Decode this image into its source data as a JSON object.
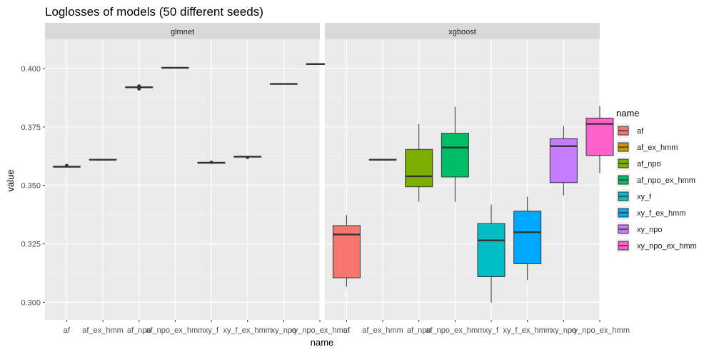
{
  "chart_data": {
    "type": "boxplot",
    "title": "Loglosses of models (50 different seeds)",
    "xlabel": "name",
    "ylabel": "value",
    "ylim": [
      0.2925,
      0.4125
    ],
    "yticks": [
      "0.300",
      "0.325",
      "0.350",
      "0.375",
      "0.400"
    ],
    "categories": [
      "af",
      "af_ex_hmm",
      "af_npo",
      "af_npo_ex_hmm",
      "xy_f",
      "xy_f_ex_hmm",
      "xy_npo",
      "xy_npo_ex_hmm"
    ],
    "legend": {
      "title": "name",
      "position": "right",
      "entries": [
        {
          "label": "af",
          "color": "#F8766D"
        },
        {
          "label": "af_ex_hmm",
          "color": "#CD9600"
        },
        {
          "label": "af_npo",
          "color": "#7CAE00"
        },
        {
          "label": "af_npo_ex_hmm",
          "color": "#00BE67"
        },
        {
          "label": "xy_f",
          "color": "#00BFC4"
        },
        {
          "label": "xy_f_ex_hmm",
          "color": "#00A9FF"
        },
        {
          "label": "xy_npo",
          "color": "#C77CFF"
        },
        {
          "label": "xy_npo_ex_hmm",
          "color": "#FF61CC"
        }
      ]
    },
    "panels": [
      {
        "facet": "glmnet",
        "boxes": [
          {
            "category": "af",
            "whisker_low": 0.3578,
            "q1": 0.3579,
            "median": 0.358,
            "q3": 0.3581,
            "whisker_high": 0.3582,
            "outliers": [
              0.3585
            ]
          },
          {
            "category": "af_ex_hmm",
            "whisker_low": 0.361,
            "q1": 0.361,
            "median": 0.361,
            "q3": 0.361,
            "whisker_high": 0.361,
            "outliers": []
          },
          {
            "category": "af_npo",
            "whisker_low": 0.3917,
            "q1": 0.3918,
            "median": 0.392,
            "q3": 0.3921,
            "whisker_high": 0.3923,
            "outliers": [
              0.3913,
              0.3925
            ]
          },
          {
            "category": "af_npo_ex_hmm",
            "whisker_low": 0.4003,
            "q1": 0.4003,
            "median": 0.4003,
            "q3": 0.4003,
            "whisker_high": 0.4003,
            "outliers": []
          },
          {
            "category": "xy_f",
            "whisker_low": 0.3594,
            "q1": 0.3595,
            "median": 0.3597,
            "q3": 0.3598,
            "whisker_high": 0.3599,
            "outliers": [
              0.3599
            ]
          },
          {
            "category": "xy_f_ex_hmm",
            "whisker_low": 0.362,
            "q1": 0.3621,
            "median": 0.3623,
            "q3": 0.3624,
            "whisker_high": 0.3625,
            "outliers": [
              0.362
            ]
          },
          {
            "category": "xy_npo",
            "whisker_low": 0.3932,
            "q1": 0.3933,
            "median": 0.3934,
            "q3": 0.3935,
            "whisker_high": 0.3936,
            "outliers": []
          },
          {
            "category": "xy_npo_ex_hmm",
            "whisker_low": 0.4016,
            "q1": 0.4017,
            "median": 0.4019,
            "q3": 0.402,
            "whisker_high": 0.4021,
            "outliers": []
          }
        ]
      },
      {
        "facet": "xgboost",
        "boxes": [
          {
            "category": "af",
            "whisker_low": 0.3067,
            "q1": 0.3105,
            "median": 0.329,
            "q3": 0.3328,
            "whisker_high": 0.3373,
            "outliers": []
          },
          {
            "category": "af_ex_hmm",
            "whisker_low": 0.361,
            "q1": 0.361,
            "median": 0.361,
            "q3": 0.361,
            "whisker_high": 0.361,
            "outliers": []
          },
          {
            "category": "af_npo",
            "whisker_low": 0.343,
            "q1": 0.3494,
            "median": 0.3539,
            "q3": 0.3654,
            "whisker_high": 0.3762,
            "outliers": []
          },
          {
            "category": "af_npo_ex_hmm",
            "whisker_low": 0.343,
            "q1": 0.3536,
            "median": 0.3662,
            "q3": 0.3723,
            "whisker_high": 0.3836,
            "outliers": []
          },
          {
            "category": "xy_f",
            "whisker_low": 0.2998,
            "q1": 0.311,
            "median": 0.3265,
            "q3": 0.3337,
            "whisker_high": 0.3418,
            "outliers": []
          },
          {
            "category": "xy_f_ex_hmm",
            "whisker_low": 0.3095,
            "q1": 0.3165,
            "median": 0.33,
            "q3": 0.339,
            "whisker_high": 0.3452,
            "outliers": []
          },
          {
            "category": "xy_npo",
            "whisker_low": 0.3457,
            "q1": 0.3512,
            "median": 0.3668,
            "q3": 0.37,
            "whisker_high": 0.3755,
            "outliers": []
          },
          {
            "category": "xy_npo_ex_hmm",
            "whisker_low": 0.3552,
            "q1": 0.3628,
            "median": 0.3763,
            "q3": 0.3788,
            "whisker_high": 0.3839,
            "outliers": []
          }
        ]
      }
    ]
  }
}
